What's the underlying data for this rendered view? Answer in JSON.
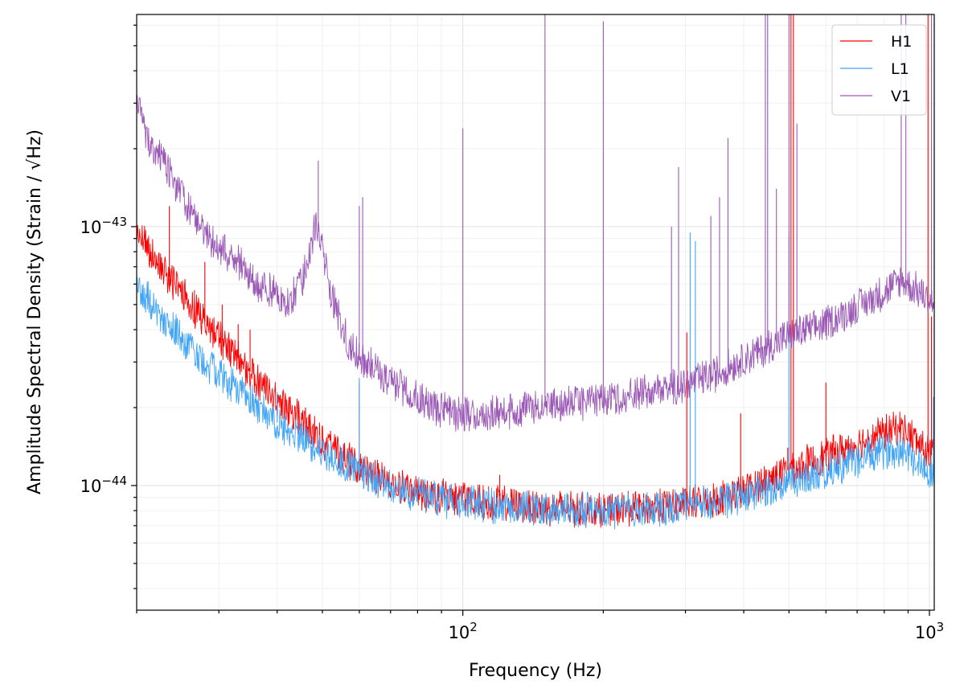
{
  "chart_data": {
    "type": "line",
    "title": "",
    "xlabel": "Frequency (Hz)",
    "ylabel": "Amplitude Spectral Density (Strain / √Hz)",
    "xscale": "log",
    "yscale": "log",
    "xlim": [
      20,
      1024
    ],
    "ylim": [
      3.3e-45,
      6.6e-43
    ],
    "grid": true,
    "legend": "top-right",
    "x_ticks": [
      {
        "value": 100,
        "base": "10",
        "exp": "2"
      },
      {
        "value": 1000,
        "base": "10",
        "exp": "3"
      }
    ],
    "y_ticks": [
      {
        "value": 1e-44,
        "base": "10",
        "exp": "−44"
      },
      {
        "value": 1e-43,
        "base": "10",
        "exp": "−43"
      }
    ],
    "series": [
      {
        "name": "H1",
        "color": "#ff0000",
        "points": [
          [
            20,
            9.5e-44
          ],
          [
            22,
            7.5e-44
          ],
          [
            25,
            5.5e-44
          ],
          [
            28,
            4.3e-44
          ],
          [
            32,
            3.3e-44
          ],
          [
            36,
            2.6e-44
          ],
          [
            40,
            2.15e-44
          ],
          [
            45,
            1.8e-44
          ],
          [
            50,
            1.5e-44
          ],
          [
            55,
            1.3e-44
          ],
          [
            60,
            1.18e-44
          ],
          [
            70,
            1.02e-44
          ],
          [
            80,
            9.4e-45
          ],
          [
            100,
            8.9e-45
          ],
          [
            120,
            8.5e-45
          ],
          [
            150,
            8.2e-45
          ],
          [
            200,
            8e-45
          ],
          [
            250,
            8.2e-45
          ],
          [
            300,
            8.5e-45
          ],
          [
            350,
            8.9e-45
          ],
          [
            400,
            9.5e-45
          ],
          [
            450,
            1.05e-44
          ],
          [
            500,
            1.15e-44
          ],
          [
            600,
            1.3e-44
          ],
          [
            700,
            1.45e-44
          ],
          [
            800,
            1.6e-44
          ],
          [
            870,
            1.68e-44
          ],
          [
            950,
            1.45e-44
          ],
          [
            1024,
            1.28e-44
          ]
        ],
        "lines": [
          [
            23.5,
            1.2e-43
          ],
          [
            28,
            7.3e-44
          ],
          [
            30.5,
            5e-44
          ],
          [
            33,
            4.2e-44
          ],
          [
            35,
            4e-44
          ],
          [
            46,
            2e-44
          ],
          [
            60,
            2.5e-44
          ],
          [
            120,
            1.1e-44
          ],
          [
            302,
            3.9e-44
          ],
          [
            394,
            1.9e-44
          ],
          [
            497,
            1.4e-44
          ],
          [
            505,
            6.6e-43
          ],
          [
            511,
            6.6e-43
          ],
          [
            600,
            2.5e-44
          ],
          [
            993,
            6.6e-43
          ],
          [
            1010,
            4.5e-44
          ]
        ]
      },
      {
        "name": "L1",
        "color": "#42a5f5",
        "points": [
          [
            20,
            6e-44
          ],
          [
            22,
            4.7e-44
          ],
          [
            25,
            3.7e-44
          ],
          [
            28,
            3e-44
          ],
          [
            32,
            2.45e-44
          ],
          [
            36,
            2.05e-44
          ],
          [
            40,
            1.75e-44
          ],
          [
            45,
            1.52e-44
          ],
          [
            50,
            1.35e-44
          ],
          [
            55,
            1.22e-44
          ],
          [
            60,
            1.13e-44
          ],
          [
            70,
            1e-44
          ],
          [
            80,
            9.2e-45
          ],
          [
            100,
            8.6e-45
          ],
          [
            120,
            8.3e-45
          ],
          [
            150,
            8.1e-45
          ],
          [
            200,
            8e-45
          ],
          [
            250,
            8.1e-45
          ],
          [
            300,
            8.3e-45
          ],
          [
            350,
            8.6e-45
          ],
          [
            400,
            9e-45
          ],
          [
            450,
            9.6e-45
          ],
          [
            500,
            1.03e-44
          ],
          [
            600,
            1.13e-44
          ],
          [
            700,
            1.25e-44
          ],
          [
            800,
            1.35e-44
          ],
          [
            870,
            1.4e-44
          ],
          [
            950,
            1.22e-44
          ],
          [
            1024,
            1.08e-44
          ]
        ],
        "lines": [
          [
            40,
            2.3e-44
          ],
          [
            60,
            2.6e-44
          ],
          [
            307,
            9.5e-44
          ],
          [
            315,
            8.8e-44
          ],
          [
            500,
            9.2e-44
          ],
          [
            1020,
            2.2e-44
          ]
        ]
      },
      {
        "name": "V1",
        "color": "#9b59b6",
        "points": [
          [
            20,
            3e-43
          ],
          [
            21,
            2.2e-43
          ],
          [
            22,
            1.95e-43
          ],
          [
            24,
            1.5e-43
          ],
          [
            26,
            1.15e-43
          ],
          [
            28,
            9.5e-44
          ],
          [
            30,
            8.3e-44
          ],
          [
            33,
            7.3e-44
          ],
          [
            36,
            6e-44
          ],
          [
            40,
            5.5e-44
          ],
          [
            42,
            5e-44
          ],
          [
            45,
            6e-44
          ],
          [
            47,
            8e-44
          ],
          [
            48.5,
            1.05e-43
          ],
          [
            50,
            8e-44
          ],
          [
            53,
            5e-44
          ],
          [
            57,
            3.5e-44
          ],
          [
            62,
            3e-44
          ],
          [
            70,
            2.55e-44
          ],
          [
            80,
            2.2e-44
          ],
          [
            90,
            1.95e-44
          ],
          [
            100,
            1.88e-44
          ],
          [
            120,
            1.9e-44
          ],
          [
            140,
            2e-44
          ],
          [
            160,
            2.05e-44
          ],
          [
            180,
            2.1e-44
          ],
          [
            200,
            2.15e-44
          ],
          [
            250,
            2.3e-44
          ],
          [
            300,
            2.45e-44
          ],
          [
            350,
            2.7e-44
          ],
          [
            400,
            3.1e-44
          ],
          [
            450,
            3.4e-44
          ],
          [
            500,
            3.8e-44
          ],
          [
            600,
            4.2e-44
          ],
          [
            700,
            4.9e-44
          ],
          [
            800,
            5.6e-44
          ],
          [
            870,
            6.2e-44
          ],
          [
            950,
            5.6e-44
          ],
          [
            1024,
            5e-44
          ]
        ],
        "lines": [
          [
            49,
            1.8e-43
          ],
          [
            60,
            1.2e-43
          ],
          [
            61,
            1.3e-43
          ],
          [
            100,
            2.4e-43
          ],
          [
            150,
            6.6e-43
          ],
          [
            200,
            6.2e-43
          ],
          [
            280,
            1e-43
          ],
          [
            290,
            1.7e-43
          ],
          [
            340,
            1.1e-43
          ],
          [
            355,
            1.3e-43
          ],
          [
            370,
            2.2e-43
          ],
          [
            445,
            6.6e-43
          ],
          [
            450,
            6.6e-43
          ],
          [
            470,
            1.4e-43
          ],
          [
            500,
            6.6e-43
          ],
          [
            520,
            2.5e-43
          ],
          [
            870,
            6.6e-43
          ],
          [
            890,
            6.6e-43
          ],
          [
            1010,
            6.6e-43
          ]
        ]
      }
    ]
  }
}
